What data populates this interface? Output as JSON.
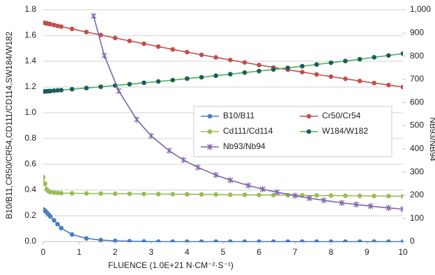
{
  "chart_data": {
    "type": "line",
    "xlabel": "FLUENCE (1.0E+21 N·CM⁻²·S⁻¹)",
    "ylabel": "B10/B11,CR50/CR54,CD111/CD114,SW184/W182",
    "y2label": "NB93/NB94",
    "x": [
      0,
      0.05,
      0.1,
      0.15,
      0.2,
      0.3,
      0.4,
      0.5,
      0.8,
      1.2,
      1.6,
      2.0,
      2.4,
      2.8,
      3.2,
      3.6,
      4.0,
      4.4,
      4.8,
      5.2,
      5.6,
      6.0,
      6.4,
      6.8,
      7.2,
      7.6,
      8.0,
      8.4,
      8.8,
      9.2,
      9.6,
      10
    ],
    "xlim": [
      0,
      10
    ],
    "xticks": [
      0,
      1,
      2,
      3,
      4,
      5,
      6,
      7,
      8,
      9,
      10
    ],
    "ylim": [
      0,
      1.8
    ],
    "yticks": [
      {
        "value": 0,
        "label": "0.0"
      },
      0.2,
      0.4,
      0.6,
      0.8,
      {
        "value": 1,
        "label": "1.0"
      },
      1.2,
      1.4,
      1.6,
      1.8
    ],
    "y2lim": [
      0,
      1000
    ],
    "y2ticks": [
      0,
      100,
      200,
      300,
      400,
      500,
      600,
      700,
      800,
      900,
      {
        "value": 1000,
        "label": "1,000"
      }
    ],
    "grid": true,
    "legend": "center-right",
    "series": [
      {
        "name": "B10/B11",
        "color": "#4a7fc1",
        "marker": "circle",
        "values": [
          0.25,
          0.24,
          0.225,
          0.21,
          0.195,
          0.165,
          0.135,
          0.105,
          0.055,
          0.025,
          0.012,
          0.006,
          0.003,
          0.001,
          0,
          0,
          0,
          0,
          0,
          0,
          0,
          0,
          0,
          0,
          0,
          0,
          0,
          0,
          0,
          0,
          0,
          0
        ]
      },
      {
        "name": "Cr50/Cr54",
        "color": "#c0504d",
        "marker": "circle",
        "values": [
          1.7,
          1.697,
          1.694,
          1.691,
          1.688,
          1.681,
          1.675,
          1.669,
          1.651,
          1.627,
          1.604,
          1.581,
          1.558,
          1.536,
          1.514,
          1.492,
          1.471,
          1.45,
          1.43,
          1.41,
          1.391,
          1.371,
          1.352,
          1.334,
          1.316,
          1.298,
          1.281,
          1.264,
          1.247,
          1.231,
          1.216,
          1.2
        ]
      },
      {
        "name": "Cd111/Cd114",
        "color": "#9bbb59",
        "marker": "circle",
        "values": [
          0.5,
          0.45,
          0.405,
          0.39,
          0.385,
          0.38,
          0.378,
          0.376,
          0.375,
          0.374,
          0.373,
          0.372,
          0.371,
          0.37,
          0.369,
          0.368,
          0.367,
          0.366,
          0.365,
          0.364,
          0.363,
          0.362,
          0.361,
          0.36,
          0.359,
          0.358,
          0.357,
          0.356,
          0.355,
          0.354,
          0.353,
          0.352
        ]
      },
      {
        "name": "W184/W182",
        "color": "#4caf50",
        "marker_color": "#1b5e57",
        "marker": "circle",
        "values": [
          1.165,
          1.166,
          1.167,
          1.168,
          1.169,
          1.172,
          1.174,
          1.176,
          1.183,
          1.192,
          1.202,
          1.212,
          1.222,
          1.233,
          1.243,
          1.254,
          1.265,
          1.276,
          1.288,
          1.3,
          1.312,
          1.324,
          1.336,
          1.349,
          1.362,
          1.375,
          1.389,
          1.402,
          1.416,
          1.431,
          1.445,
          1.46
        ]
      },
      {
        "name": "Nb93/Nb94",
        "color": "#7e62a8",
        "marker": "star",
        "axis": "y2",
        "x": [
          1.4,
          1.7,
          2.1,
          2.6,
          3.0,
          3.5,
          3.9,
          4.3,
          4.8,
          5.2,
          5.7,
          6.1,
          6.5,
          7.0,
          7.4,
          7.8,
          8.3,
          8.7,
          9.1,
          9.6,
          10
        ],
        "values": [
          973,
          802,
          650,
          526,
          456,
          392,
          352,
          320,
          287,
          265,
          242,
          226,
          213,
          198,
          187,
          178,
          167,
          160,
          153,
          145,
          140
        ]
      }
    ]
  }
}
